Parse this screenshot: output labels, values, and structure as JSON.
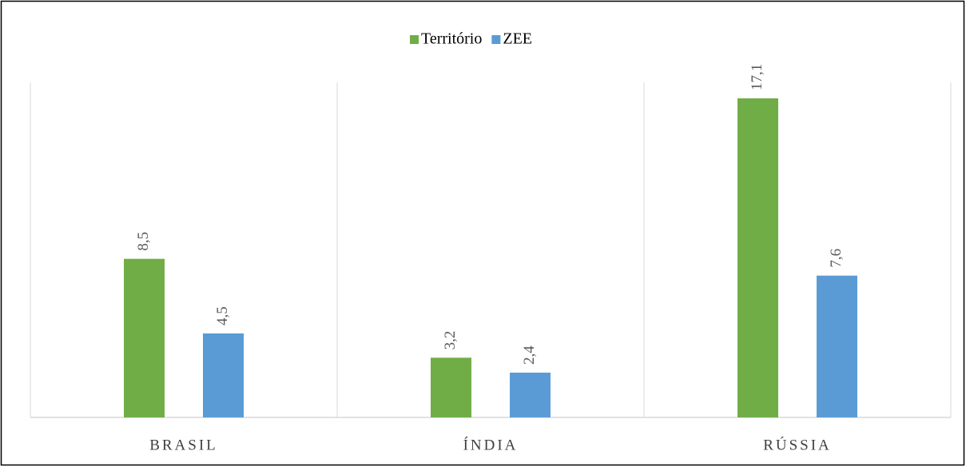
{
  "chart_data": {
    "type": "bar",
    "categories": [
      "BRASIL",
      "ÍNDIA",
      "RÚSSIA"
    ],
    "series": [
      {
        "name": "Território",
        "color": "#70ad47",
        "values": [
          8.5,
          3.2,
          17.1
        ],
        "value_labels": [
          "8,5",
          "3,2",
          "17,1"
        ]
      },
      {
        "name": "ZEE",
        "color": "#5b9bd5",
        "values": [
          4.5,
          2.4,
          7.6
        ],
        "value_labels": [
          "4,5",
          "2,4",
          "7,6"
        ]
      }
    ],
    "legend": "top"
  }
}
